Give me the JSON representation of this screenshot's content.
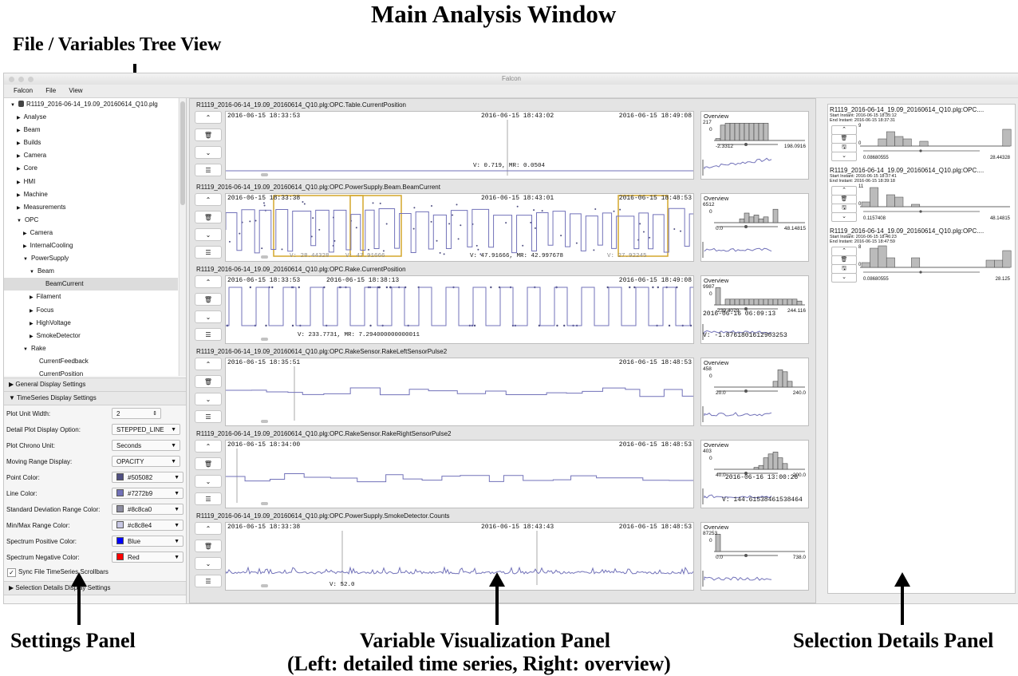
{
  "annotations": {
    "main_title": "Main Analysis Window",
    "tree_view": "File / Variables Tree View",
    "settings_panel": "Settings Panel",
    "viz_panel_line1": "Variable Visualization Panel",
    "viz_panel_line2": "(Left: detailed time series, Right: overview)",
    "selection_panel": "Selection Details Panel"
  },
  "window": {
    "title": "Falcon"
  },
  "menu": [
    "Falcon",
    "File",
    "View"
  ],
  "tree": [
    {
      "label": "R1119_2016-06-14_19.09_20160614_Q10.plg",
      "level": 0,
      "arrow": "▼",
      "icon": "database-icon"
    },
    {
      "label": "Analyse",
      "level": 1,
      "arrow": "▶"
    },
    {
      "label": "Beam",
      "level": 1,
      "arrow": "▶"
    },
    {
      "label": "Builds",
      "level": 1,
      "arrow": "▶"
    },
    {
      "label": "Camera",
      "level": 1,
      "arrow": "▶"
    },
    {
      "label": "Core",
      "level": 1,
      "arrow": "▶"
    },
    {
      "label": "HMI",
      "level": 1,
      "arrow": "▶"
    },
    {
      "label": "Machine",
      "level": 1,
      "arrow": "▶"
    },
    {
      "label": "Measurements",
      "level": 1,
      "arrow": "▶"
    },
    {
      "label": "OPC",
      "level": 1,
      "arrow": "▼"
    },
    {
      "label": "Camera",
      "level": 2,
      "arrow": "▶"
    },
    {
      "label": "InternalCooling",
      "level": 2,
      "arrow": "▶"
    },
    {
      "label": "PowerSupply",
      "level": 2,
      "arrow": "▼"
    },
    {
      "label": "Beam",
      "level": 3,
      "arrow": "▼"
    },
    {
      "label": "BeamCurrent",
      "level": 4,
      "arrow": "",
      "selected": true
    },
    {
      "label": "Filament",
      "level": 3,
      "arrow": "▶"
    },
    {
      "label": "Focus",
      "level": 3,
      "arrow": "▶"
    },
    {
      "label": "HighVoltage",
      "level": 3,
      "arrow": "▶"
    },
    {
      "label": "SmokeDetector",
      "level": 3,
      "arrow": "▶"
    },
    {
      "label": "Rake",
      "level": 2,
      "arrow": "▼"
    },
    {
      "label": "CurrentFeedback",
      "level": 3,
      "arrow": ""
    },
    {
      "label": "CurrentPosition",
      "level": 3,
      "arrow": ""
    }
  ],
  "settings": {
    "general_header": "General Display Settings",
    "timeseries_header": "TimeSeries Display Settings",
    "selection_header": "Selection Details Display Settings",
    "sync_label": "Sync File TimeSeries Scrollbars",
    "sync_checked": true,
    "rows": [
      {
        "label": "Plot Unit Width:",
        "value": "2",
        "type": "spinner"
      },
      {
        "label": "Detail Plot Display Option:",
        "value": "STEPPED_LINE",
        "type": "select"
      },
      {
        "label": "Plot Chrono Unit:",
        "value": "Seconds",
        "type": "select"
      },
      {
        "label": "Moving Range Display:",
        "value": "OPACITY",
        "type": "select"
      },
      {
        "label": "Point Color:",
        "value": "#505082",
        "type": "color",
        "color": "#505082"
      },
      {
        "label": "Line Color:",
        "value": "#7272b9",
        "type": "color",
        "color": "#7272b9"
      },
      {
        "label": "Standard Deviation Range Color:",
        "value": "#8c8ca0",
        "type": "color",
        "color": "#8c8ca0"
      },
      {
        "label": "Min/Max Range Color:",
        "value": "#c8c8e4",
        "type": "color",
        "color": "#c8c8e4"
      },
      {
        "label": "Spectrum Positive Color:",
        "value": "Blue",
        "type": "color",
        "color": "#0000ff"
      },
      {
        "label": "Spectrum Negative Color:",
        "value": "Red",
        "type": "color",
        "color": "#ff0000"
      }
    ]
  },
  "variables": [
    {
      "title": "R1119_2016-06-14_19.09_20160614_Q10.plg:OPC.Table.CurrentPosition",
      "ts_left": "2016-06-15 18:33:53",
      "ts_mid": "2016-06-15 18:43:02",
      "ts_right": "2016-06-15 18:49:08",
      "values": [
        "V: 0.719, MR: 0.0504"
      ],
      "overview": {
        "title": "Overview",
        "max": "217",
        "zero": "0",
        "tick_min": "-2.3312",
        "tick_max": "198.0916"
      }
    },
    {
      "title": "R1119_2016-06-14_19.09_20160614_Q10.plg:OPC.PowerSupply.Beam.BeamCurrent",
      "ts_left": "2016-06-15 18:33:38",
      "ts_mid": "2016-06-15 18:43:01",
      "ts_right": "2016-06-15 18:48:53",
      "values": [
        "V: 28.44328",
        "V: 47.91666",
        "V: 47.91666, MR: 42.997678",
        "V: 27.92245"
      ],
      "overview": {
        "title": "Overview",
        "max": "6512",
        "zero": "0",
        "tick_min": "0.0",
        "tick_max": "48.14815"
      }
    },
    {
      "title": "R1119_2016-06-14_19.09_20160614_Q10.plg:OPC.Rake.CurrentPosition",
      "ts_left": "2016-06-15 18:33:53",
      "ts_mid": "2016-06-15 18:38:13",
      "ts_right": "2016-06-15 18:49:08",
      "values": [
        "V: 233.7731, MR: 7.294000000000011"
      ],
      "overview": {
        "title": "Overview",
        "max": "9987",
        "zero": "0",
        "tick_min": "-239.4079",
        "tick_max": "244.116",
        "hover_time": "2016-06-16 06:09:13",
        "hover_value": "V: -1.876180161290325З"
      }
    },
    {
      "title": "R1119_2016-06-14_19.09_20160614_Q10.plg:OPC.RakeSensor.RakeLeftSensorPulse2",
      "ts_left": "2016-06-15 18:35:51",
      "ts_mid": "",
      "ts_right": "2016-06-15 18:48:53",
      "values": [],
      "overview": {
        "title": "Overview",
        "max": "458",
        "zero": "0",
        "tick_min": "20.0",
        "tick_max": "240.0"
      }
    },
    {
      "title": "R1119_2016-06-14_19.09_20160614_Q10.plg:OPC.RakeSensor.RakeRightSensorPulse2",
      "ts_left": "2016-06-15 18:34:00",
      "ts_mid": "",
      "ts_right": "2016-06-15 18:48:53",
      "values": [],
      "overview": {
        "title": "Overview",
        "max": "403",
        "zero": "0",
        "tick_min": "40.0",
        "tick_max": "200.0",
        "hover_time": "2016-06-16 13:00:26",
        "hover_value": "V: 144.61538461538464"
      }
    },
    {
      "title": "R1119_2016-06-14_19.09_20160614_Q10.plg:OPC.PowerSupply.SmokeDetector.Counts",
      "ts_left": "2016-06-15 18:33:38",
      "ts_mid": "2016-06-15 18:43:43",
      "ts_right": "2016-06-15 18:48:53",
      "values": [
        "V: 52.0"
      ],
      "overview": {
        "title": "Overview",
        "max": "87253",
        "zero": "0",
        "tick_min": "0.0",
        "tick_max": "738.0"
      }
    }
  ],
  "selections": [
    {
      "title": "R1119_2016-06-14_19.09_20160614_Q10.plg:OPC....",
      "start": "Start Instant: 2016-06-15 18:35:12",
      "end": "End Instant: 2016-06-15 18:37:31",
      "max_count": "9",
      "zero": "0",
      "min": "0.08680555",
      "max": "28.44328"
    },
    {
      "title": "R1119_2016-06-14_19.09_20160614_Q10.plg:OPC....",
      "start": "Start Instant: 2016-06-15 18:37:41",
      "end": "End Instant: 2016-06-15 18:39:18",
      "max_count": "11",
      "zero": "0",
      "min": "0.1157408",
      "max": "48.14815"
    },
    {
      "title": "R1119_2016-06-14_19.09_20160614_Q10.plg:OPC....",
      "start": "Start Instant: 2016-06-15 18:46:23",
      "end": "End Instant: 2016-06-15 18:47:59",
      "max_count": "8",
      "zero": "0",
      "min": "0.08680555",
      "max": "28.125"
    }
  ],
  "colors": {
    "point": "#505082",
    "line": "#7272b9",
    "std": "#8c8ca0",
    "minmax": "#c8c8e4",
    "selection_box": "#d4a72c"
  }
}
